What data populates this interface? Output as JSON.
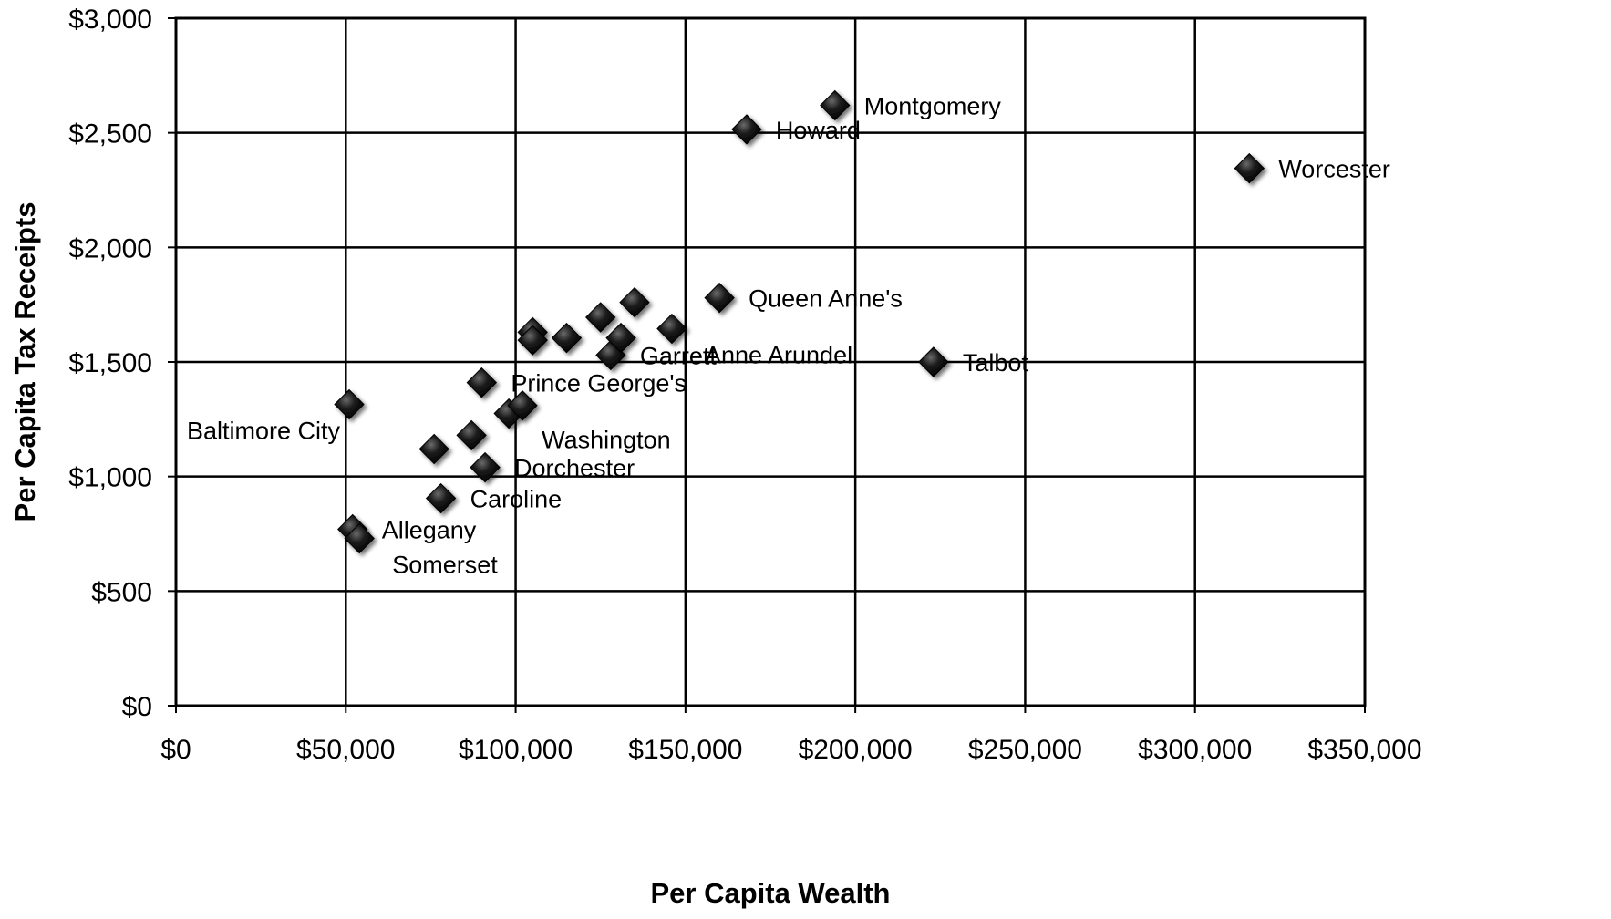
{
  "chart_data": {
    "type": "scatter",
    "title": "",
    "xlabel": "Per Capita Wealth",
    "ylabel": "Per Capita Tax Receipts",
    "xlim": [
      0,
      350000
    ],
    "ylim": [
      0,
      3000
    ],
    "x_ticks": [
      0,
      50000,
      100000,
      150000,
      200000,
      250000,
      300000,
      350000
    ],
    "y_ticks": [
      0,
      500,
      1000,
      1500,
      2000,
      2500,
      3000
    ],
    "x_tick_labels": [
      "$0",
      "$50,000",
      "$100,000",
      "$150,000",
      "$200,000",
      "$250,000",
      "$300,000",
      "$350,000"
    ],
    "y_tick_labels": [
      "$0",
      "$500",
      "$1,000",
      "$1,500",
      "$2,000",
      "$2,500",
      "$3,000"
    ],
    "grid": true,
    "legend": "none",
    "marker": "diamond",
    "marker_color": "#111111",
    "points": [
      {
        "x": 194000,
        "y": 2620,
        "label": "Montgomery",
        "label_side": "right"
      },
      {
        "x": 168000,
        "y": 2515,
        "label": "Howard",
        "label_side": "right"
      },
      {
        "x": 316000,
        "y": 2345,
        "label": "Worcester",
        "label_side": "right"
      },
      {
        "x": 160000,
        "y": 1780,
        "label": "Queen Anne's",
        "label_side": "right"
      },
      {
        "x": 146000,
        "y": 1645,
        "label": "Anne Arundel",
        "label_side": "below-right"
      },
      {
        "x": 128000,
        "y": 1530,
        "label": "Garrett",
        "label_side": "right"
      },
      {
        "x": 223000,
        "y": 1500,
        "label": "Talbot",
        "label_side": "right"
      },
      {
        "x": 90000,
        "y": 1410,
        "label": "Prince George's",
        "label_side": "right"
      },
      {
        "x": 51000,
        "y": 1315,
        "label": "Baltimore City",
        "label_side": "below-left"
      },
      {
        "x": 98000,
        "y": 1275,
        "label": "Washington",
        "label_side": "below-right"
      },
      {
        "x": 91000,
        "y": 1040,
        "label": "Dorchester",
        "label_side": "right"
      },
      {
        "x": 78000,
        "y": 905,
        "label": "Caroline",
        "label_side": "right"
      },
      {
        "x": 52000,
        "y": 770,
        "label": "Allegany",
        "label_side": "right"
      },
      {
        "x": 54000,
        "y": 730,
        "label": "Somerset",
        "label_side": "below-right"
      },
      {
        "x": 105000,
        "y": 1630,
        "label": ""
      },
      {
        "x": 105000,
        "y": 1595,
        "label": ""
      },
      {
        "x": 115000,
        "y": 1605,
        "label": ""
      },
      {
        "x": 125000,
        "y": 1695,
        "label": ""
      },
      {
        "x": 135000,
        "y": 1760,
        "label": ""
      },
      {
        "x": 131000,
        "y": 1605,
        "label": ""
      },
      {
        "x": 102000,
        "y": 1310,
        "label": ""
      },
      {
        "x": 87000,
        "y": 1180,
        "label": ""
      },
      {
        "x": 76000,
        "y": 1120,
        "label": ""
      }
    ]
  }
}
